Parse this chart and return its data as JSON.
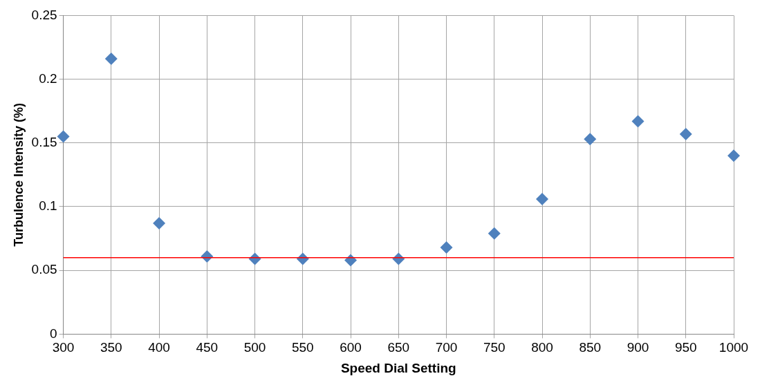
{
  "chart_data": {
    "type": "scatter",
    "xlabel": "Speed Dial Setting",
    "ylabel": "Turbulence Intensity (%)",
    "x": [
      300,
      350,
      400,
      450,
      500,
      550,
      600,
      650,
      700,
      750,
      800,
      850,
      900,
      950,
      1000
    ],
    "series": [
      {
        "color": "#4f81bd",
        "values": [
          0.155,
          0.216,
          0.087,
          0.061,
          0.059,
          0.059,
          0.058,
          0.059,
          0.068,
          0.079,
          0.106,
          0.153,
          0.167,
          0.157,
          0.14
        ]
      }
    ],
    "xlim": [
      300,
      1000
    ],
    "xticks": [
      300,
      350,
      400,
      450,
      500,
      550,
      600,
      650,
      700,
      750,
      800,
      850,
      900,
      950,
      1000
    ],
    "ylim": [
      0,
      0.25
    ],
    "yticks": [
      0,
      0.05,
      0.1,
      0.15,
      0.2,
      0.25
    ],
    "ref_lines": [
      {
        "axis": "y",
        "value": 0.06,
        "color": "#ff0000"
      }
    ],
    "grid": true,
    "legend": false,
    "marker": "diamond"
  }
}
